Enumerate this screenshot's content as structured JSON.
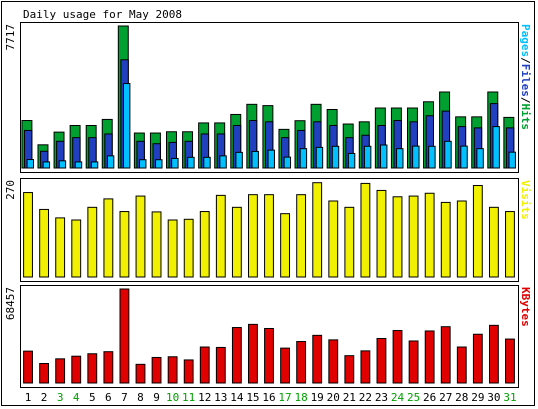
{
  "chart_data": {
    "type": "bar",
    "title": "Daily usage for May 2008",
    "categories": [
      "1",
      "2",
      "3",
      "4",
      "5",
      "6",
      "7",
      "8",
      "9",
      "10",
      "11",
      "12",
      "13",
      "14",
      "15",
      "16",
      "17",
      "18",
      "19",
      "20",
      "21",
      "22",
      "23",
      "24",
      "25",
      "26",
      "27",
      "28",
      "29",
      "30",
      "31"
    ],
    "weekend_days": [
      "3",
      "4",
      "10",
      "11",
      "17",
      "18",
      "24",
      "25",
      "31"
    ],
    "panels": [
      {
        "id": "hits",
        "ymax_label": "7717",
        "ylim": [
          0,
          7717
        ],
        "series": [
          {
            "name": "Hits",
            "color": "#00a030",
            "values": [
              2580,
              1260,
              1950,
              2310,
              2310,
              2640,
              7717,
              1900,
              1900,
              1970,
              1970,
              2450,
              2450,
              2910,
              3460,
              3390,
              2100,
              2570,
              3460,
              3180,
              2390,
              2510,
              3260,
              3260,
              3260,
              3600,
              4130,
              2780,
              2780,
              4130,
              2750
            ]
          },
          {
            "name": "Files",
            "color": "#2040c0",
            "values": [
              2040,
              910,
              1450,
              1650,
              1650,
              1850,
              5880,
              1450,
              1320,
              1390,
              1450,
              1850,
              1850,
              2310,
              2580,
              2510,
              1650,
              2040,
              2510,
              2310,
              1650,
              1780,
              2310,
              2580,
              2510,
              2840,
              3090,
              2250,
              2180,
              3500,
              2180
            ]
          },
          {
            "name": "Pages",
            "color": "#00c0ff",
            "values": [
              460,
              330,
              390,
              330,
              330,
              660,
              4590,
              450,
              450,
              520,
              580,
              580,
              660,
              850,
              900,
              970,
              590,
              1050,
              1120,
              1180,
              790,
              1180,
              1250,
              1050,
              1190,
              1180,
              1450,
              1190,
              1050,
              2250,
              860
            ]
          }
        ]
      },
      {
        "id": "visits",
        "ymax_label": "270",
        "ylim": [
          0,
          270
        ],
        "series": [
          {
            "name": "Visits",
            "color": "#f0f000",
            "values": [
              240,
              192,
              168,
              162,
              198,
              222,
              186,
              230,
              185,
              162,
              164,
              186,
              232,
              198,
              234,
              234,
              180,
              234,
              268,
              216,
              198,
              266,
              246,
              228,
              230,
              238,
              212,
              216,
              260,
              198,
              186
            ]
          }
        ]
      },
      {
        "id": "kbytes",
        "ymax_label": "68457",
        "ylim": [
          0,
          68457
        ],
        "series": [
          {
            "name": "KBytes",
            "color": "#e00000",
            "values": [
              23200,
              14200,
              17600,
              19500,
              21300,
              22800,
              68457,
              13600,
              18600,
              19100,
              16800,
              26200,
              25900,
              40400,
              42700,
              39700,
              25400,
              30200,
              34700,
              31400,
              19900,
              23400,
              32400,
              38200,
              30600,
              37900,
              41000,
              26200,
              35500,
              42000,
              32000
            ]
          }
        ]
      }
    ]
  }
}
